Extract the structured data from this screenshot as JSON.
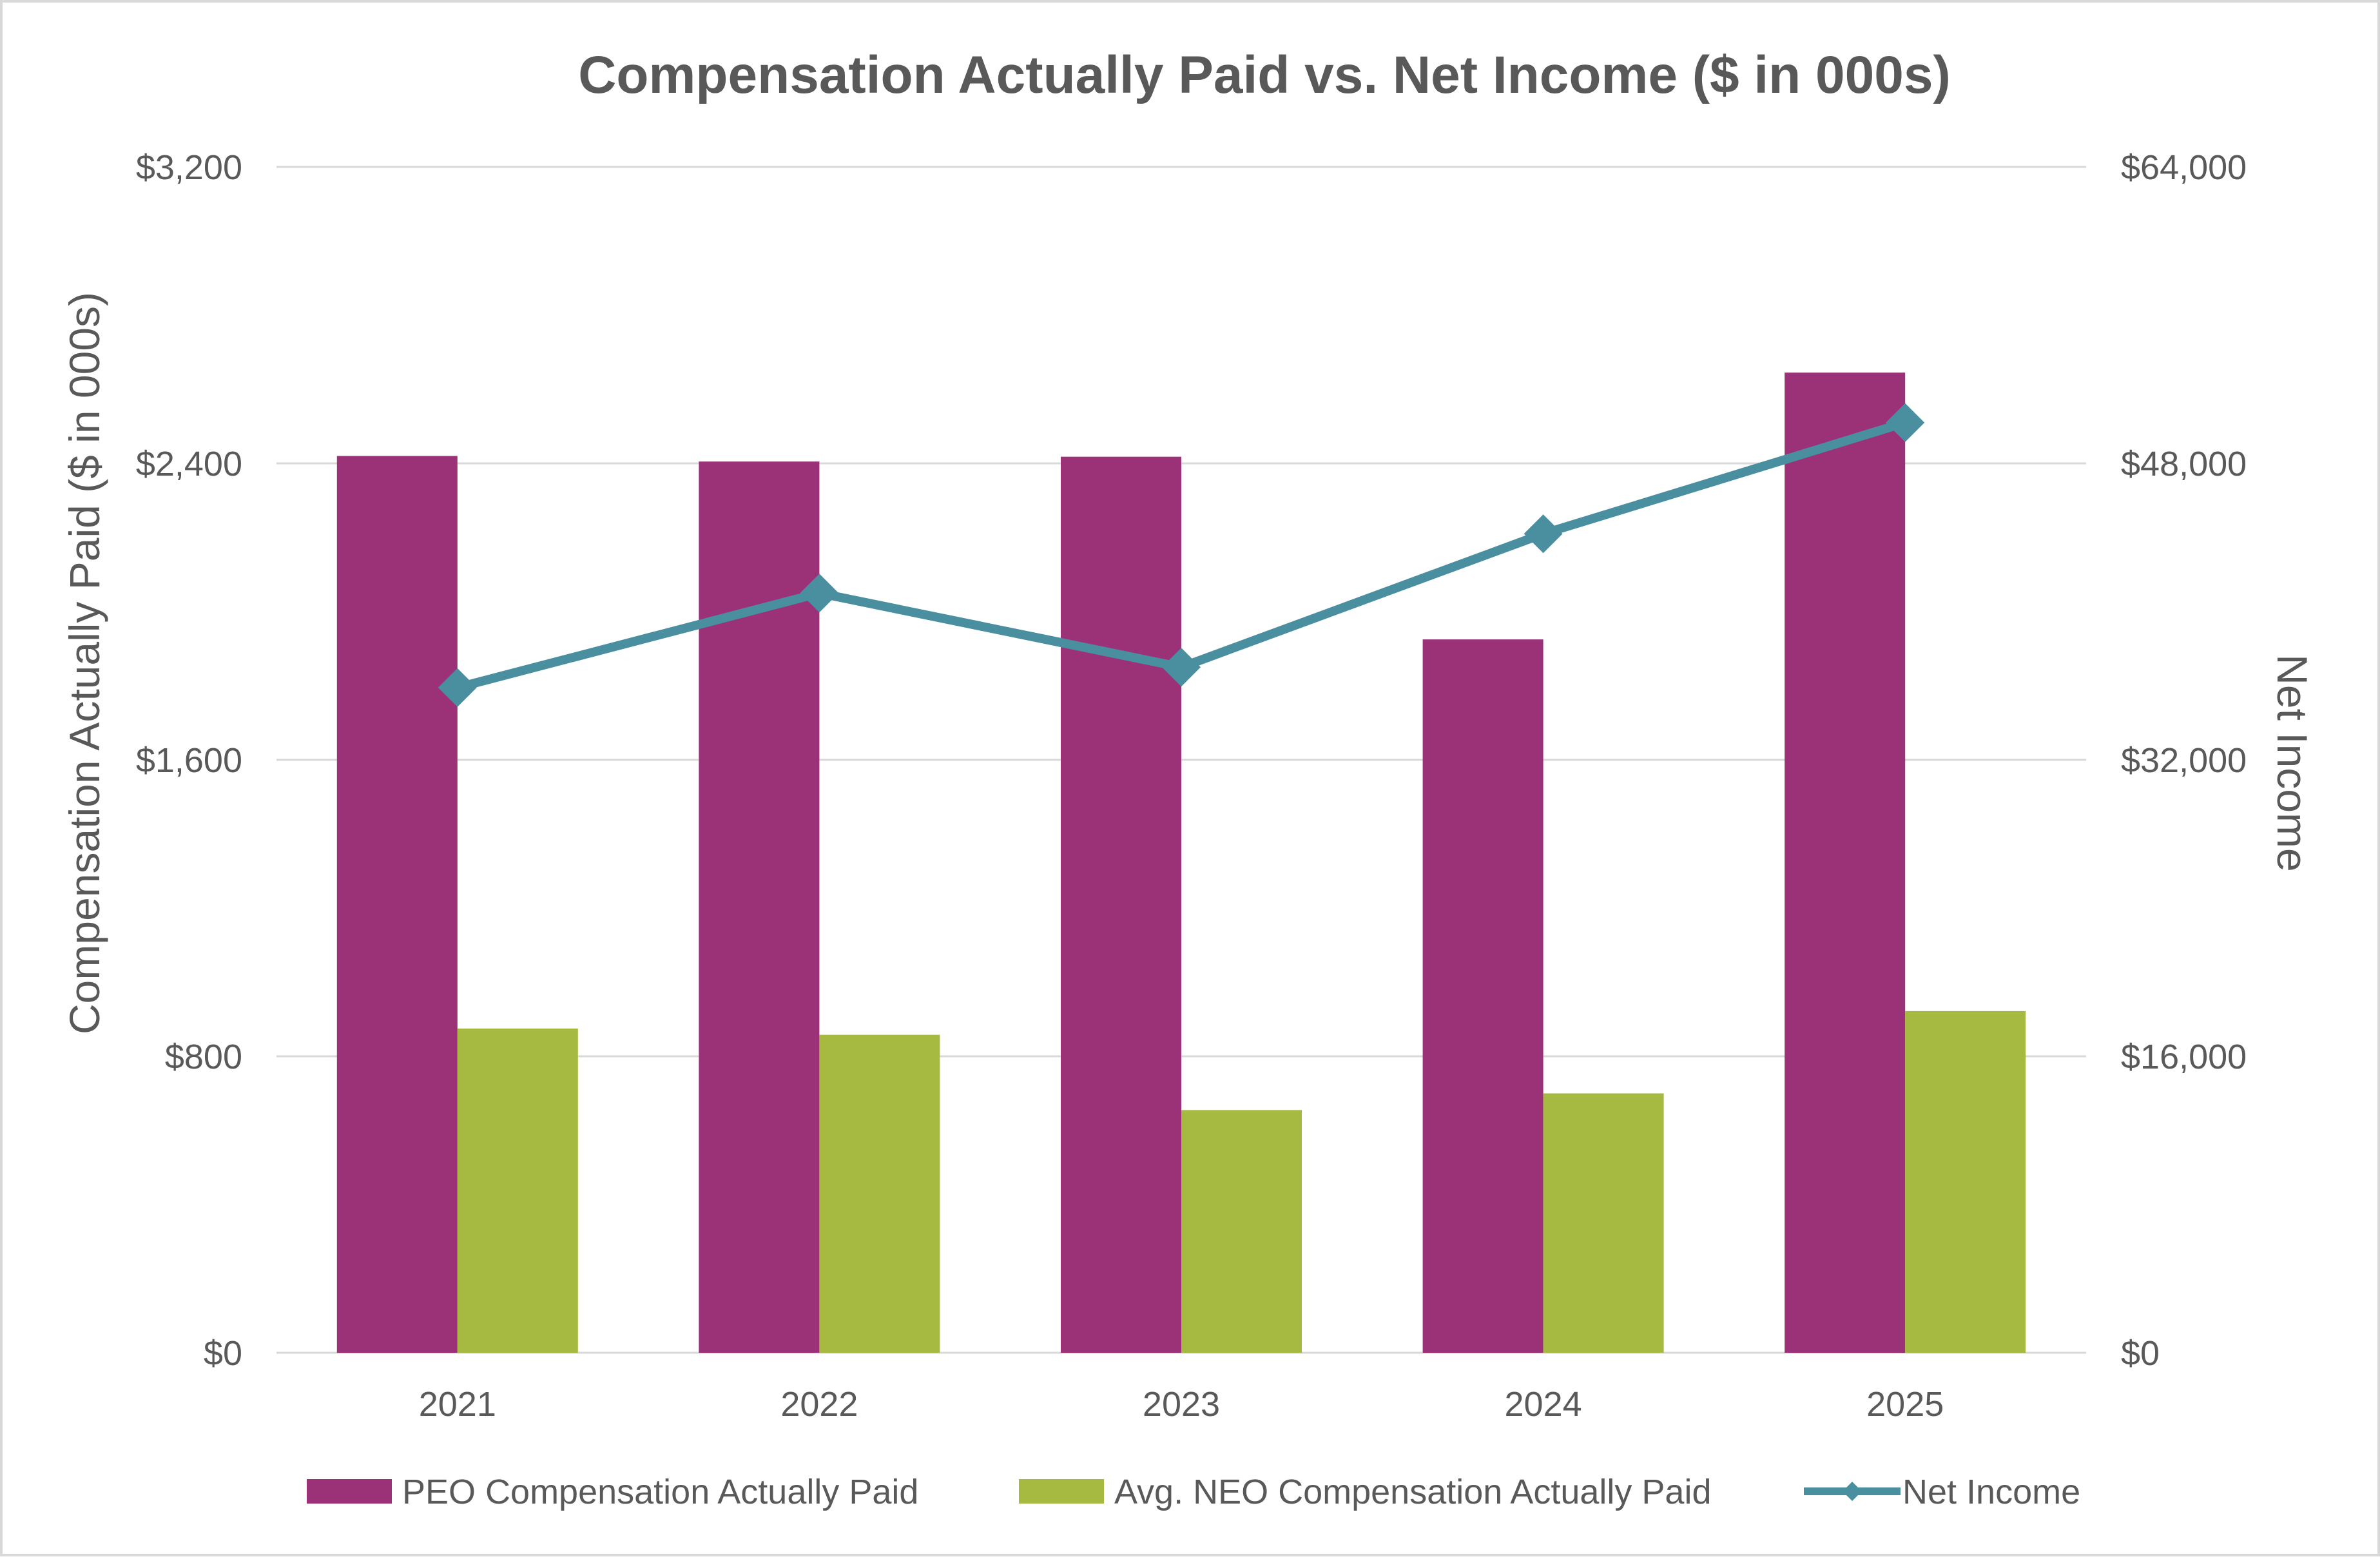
{
  "chart_data": {
    "type": "bar",
    "title": "Compensation Actually Paid vs. Net Income ($ in 000s)",
    "categories": [
      "2021",
      "2022",
      "2023",
      "2024",
      "2025"
    ],
    "y_left": {
      "label": "Compensation Actually Paid ($ in 000s)",
      "range": [
        0,
        3200
      ],
      "ticks": [
        0,
        800,
        1600,
        2400,
        3200
      ],
      "tick_labels": [
        "$0",
        "$800",
        "$1,600",
        "$2,400",
        "$3,200"
      ]
    },
    "y_right": {
      "label": "Net Income",
      "range": [
        0,
        64000
      ],
      "ticks": [
        0,
        16000,
        32000,
        48000,
        64000
      ],
      "tick_labels": [
        "$0",
        "$16,000",
        "$32,000",
        "$48,000",
        "$64,000"
      ]
    },
    "series": [
      {
        "name": "PEO Compensation Actually Paid",
        "type": "bar",
        "axis": "left",
        "color": "#9B3177",
        "values": [
          2420,
          2405,
          2418,
          1925,
          2645
        ]
      },
      {
        "name": "Avg. NEO Compensation Actually Paid",
        "type": "bar",
        "axis": "left",
        "color": "#A6B941",
        "values": [
          875,
          858,
          655,
          700,
          922
        ]
      },
      {
        "name": "Net Income",
        "type": "line",
        "axis": "right",
        "color": "#4A8FA0",
        "marker": "diamond",
        "values": [
          35900,
          41000,
          37000,
          44200,
          50200
        ]
      }
    ],
    "grid": true,
    "legend": "bottom"
  }
}
